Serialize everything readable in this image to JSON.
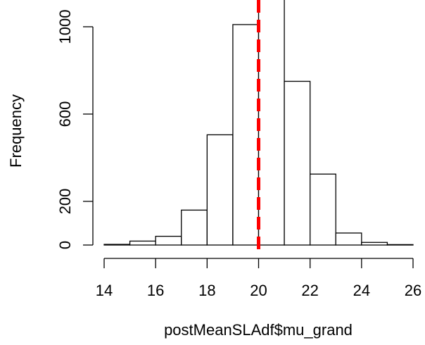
{
  "chart_data": {
    "type": "bar",
    "title": "",
    "xlabel": "postMeanSLAdf$mu_grand",
    "ylabel": "Frequency",
    "bins": [
      {
        "x0": 14,
        "x1": 15,
        "count": 3
      },
      {
        "x0": 15,
        "x1": 16,
        "count": 18
      },
      {
        "x0": 16,
        "x1": 17,
        "count": 40
      },
      {
        "x0": 17,
        "x1": 18,
        "count": 160
      },
      {
        "x0": 18,
        "x1": 19,
        "count": 505
      },
      {
        "x0": 19,
        "x1": 20,
        "count": 1010
      },
      {
        "x0": 20,
        "x1": 21,
        "count": 1150
      },
      {
        "x0": 21,
        "x1": 22,
        "count": 750
      },
      {
        "x0": 22,
        "x1": 23,
        "count": 325
      },
      {
        "x0": 23,
        "x1": 24,
        "count": 55
      },
      {
        "x0": 24,
        "x1": 25,
        "count": 12
      },
      {
        "x0": 25,
        "x1": 26,
        "count": 2
      }
    ],
    "xlim": [
      14,
      26
    ],
    "ylim": [
      0,
      1150
    ],
    "xticks": [
      14,
      16,
      18,
      20,
      22,
      24,
      26
    ],
    "yticks": [
      0,
      200,
      600,
      1000
    ],
    "reference_line": {
      "x": 20,
      "color": "#ff0000",
      "style": "dashed"
    },
    "bar_fill": "#ffffff",
    "bar_stroke": "#000000"
  }
}
